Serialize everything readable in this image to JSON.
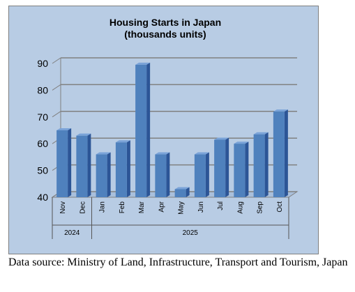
{
  "chart_data": {
    "type": "bar",
    "title_lines": [
      "Housing Starts in Japan",
      "(thousands units)"
    ],
    "categories": [
      "Nov",
      "Dec",
      "Jan",
      "Feb",
      "Mar",
      "Apr",
      "May",
      "Jun",
      "Jul",
      "Aug",
      "Sep",
      "Oct"
    ],
    "groups": [
      {
        "label": "2024",
        "start": 0,
        "end": 1
      },
      {
        "label": "2025",
        "start": 2,
        "end": 11
      }
    ],
    "values": [
      65,
      63,
      56,
      60.5,
      89.5,
      56,
      43,
      56,
      61.5,
      60,
      63.5,
      72
    ],
    "ylim": [
      40,
      90
    ],
    "yticks": [
      40,
      50,
      60,
      70,
      80,
      90
    ],
    "grid": true,
    "legend": "none"
  },
  "colors": {
    "background": "#b8cce4",
    "bar_front": "#4f81bd",
    "bar_side": "#2c5596",
    "bar_top": "#7aa3d8",
    "grid": "#808080"
  },
  "source_note": "Data source: Ministry of Land, Infrastructure, Transport and Tourism, Japan"
}
